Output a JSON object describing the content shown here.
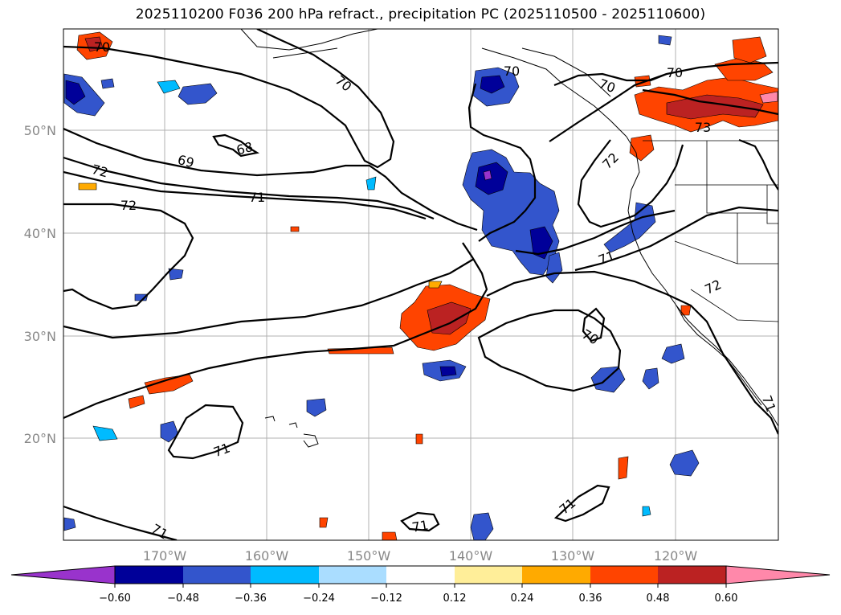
{
  "title": "2025110200 F036 200 hPa refract., precipitation PC (2025110500 - 2025110600)",
  "map": {
    "lat_labels": [
      "50°N",
      "40°N",
      "30°N",
      "20°N"
    ],
    "lon_labels": [
      "170°W",
      "160°W",
      "150°W",
      "140°W",
      "130°W",
      "120°W"
    ],
    "contour_labels": [
      "70",
      "70",
      "70",
      "70",
      "70",
      "69",
      "68",
      "72",
      "72",
      "71",
      "72",
      "71",
      "72",
      "73",
      "70",
      "71",
      "71",
      "71",
      "71",
      "71"
    ]
  },
  "colorbar": {
    "colors": [
      "#9933cc",
      "#000099",
      "#3355cc",
      "#00bbff",
      "#aaddff",
      "#ffffff",
      "#ffee99",
      "#ffaa00",
      "#ff4400",
      "#bb2222",
      "#ff88aa"
    ],
    "labels": [
      "−0.60",
      "−0.48",
      "−0.36",
      "−0.24",
      "−0.12",
      "0.12",
      "0.24",
      "0.36",
      "0.48",
      "0.60"
    ]
  }
}
